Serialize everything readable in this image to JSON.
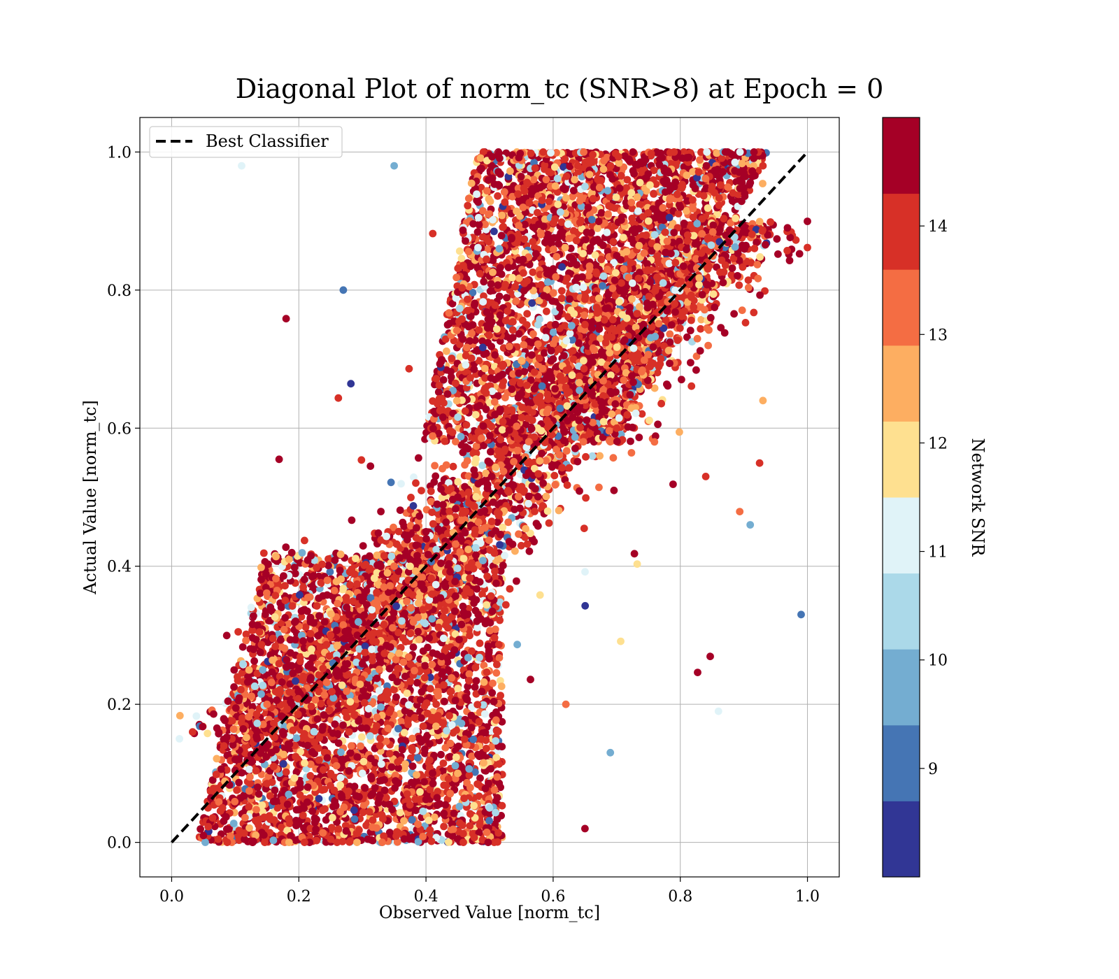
{
  "chart_data": {
    "type": "scatter",
    "title": "Diagonal Plot of norm_tc (SNR>8) at Epoch = 0",
    "xlabel": "Observed Value [norm_tc]",
    "ylabel": "Actual Value [norm_tc]",
    "xlim": [
      -0.05,
      1.05
    ],
    "ylim": [
      -0.05,
      1.05
    ],
    "xticks": [
      "0.0",
      "0.2",
      "0.4",
      "0.6",
      "0.8",
      "1.0"
    ],
    "yticks": [
      "0.0",
      "0.2",
      "0.4",
      "0.6",
      "0.8",
      "1.0"
    ],
    "grid": true,
    "legend": {
      "placement": "top-left",
      "entries": [
        {
          "label": "Best Classifier",
          "style": "dashed",
          "color": "#000000"
        }
      ]
    },
    "reference_line": {
      "label": "Best Classifier",
      "x": [
        0.0,
        1.0
      ],
      "y": [
        0.0,
        1.0
      ]
    },
    "colorbar": {
      "label": "Network SNR",
      "range": [
        8.0,
        15.0
      ],
      "ticks": [
        "9",
        "10",
        "11",
        "12",
        "13",
        "14"
      ],
      "tick_values": [
        9,
        10,
        11,
        12,
        13,
        14
      ],
      "colors": [
        "#313695",
        "#4575b4",
        "#74add1",
        "#abd9e9",
        "#e0f3f8",
        "#fee090",
        "#fdae61",
        "#f46d43",
        "#d73027",
        "#a50026"
      ]
    },
    "series": [
      {
        "points_sample": [
          {
            "x": 0.05,
            "y": 0.01,
            "snr": 14.5
          },
          {
            "x": 0.08,
            "y": 0.05,
            "snr": 14.2
          },
          {
            "x": 0.1,
            "y": 0.12,
            "snr": 14.6
          },
          {
            "x": 0.15,
            "y": 0.2,
            "snr": 13.5
          },
          {
            "x": 0.2,
            "y": 0.25,
            "snr": 14.8
          },
          {
            "x": 0.25,
            "y": 0.3,
            "snr": 14.1
          },
          {
            "x": 0.3,
            "y": 0.35,
            "snr": 14.7
          },
          {
            "x": 0.35,
            "y": 0.4,
            "snr": 13.2
          },
          {
            "x": 0.4,
            "y": 0.45,
            "snr": 14.9
          },
          {
            "x": 0.45,
            "y": 0.5,
            "snr": 14.4
          },
          {
            "x": 0.5,
            "y": 0.55,
            "snr": 14.6
          },
          {
            "x": 0.55,
            "y": 0.65,
            "snr": 14.3
          },
          {
            "x": 0.6,
            "y": 0.7,
            "snr": 14.8
          },
          {
            "x": 0.65,
            "y": 0.75,
            "snr": 13.9
          },
          {
            "x": 0.7,
            "y": 0.85,
            "snr": 14.5
          },
          {
            "x": 0.75,
            "y": 0.9,
            "snr": 12.2
          },
          {
            "x": 0.8,
            "y": 0.92,
            "snr": 14.7
          },
          {
            "x": 0.85,
            "y": 0.95,
            "snr": 14.2
          },
          {
            "x": 0.9,
            "y": 0.97,
            "snr": 14.9
          },
          {
            "x": 0.93,
            "y": 0.98,
            "snr": 13.8
          },
          {
            "x": 0.45,
            "y": 0.1,
            "snr": 12.5
          },
          {
            "x": 0.5,
            "y": 0.05,
            "snr": 10.6
          },
          {
            "x": 0.3,
            "y": 0.1,
            "snr": 11.4
          },
          {
            "x": 0.65,
            "y": 0.95,
            "snr": 10.3
          },
          {
            "x": 0.7,
            "y": 0.6,
            "snr": 14.1
          },
          {
            "x": 0.99,
            "y": 0.33,
            "snr": 9.2
          },
          {
            "x": 0.84,
            "y": 0.53,
            "snr": 14.0
          },
          {
            "x": 0.91,
            "y": 0.46,
            "snr": 9.8
          },
          {
            "x": 0.27,
            "y": 0.8,
            "snr": 9.3
          },
          {
            "x": 0.35,
            "y": 0.98,
            "snr": 9.4
          },
          {
            "x": 0.11,
            "y": 0.98,
            "snr": 11.3
          },
          {
            "x": 0.93,
            "y": 0.64,
            "snr": 12.8
          },
          {
            "x": 0.86,
            "y": 0.19,
            "snr": 10.8
          },
          {
            "x": 0.69,
            "y": 0.13,
            "snr": 10.1
          },
          {
            "x": 0.65,
            "y": 0.02,
            "snr": 14.9
          },
          {
            "x": 0.62,
            "y": 0.2,
            "snr": 13.6
          }
        ]
      }
    ]
  }
}
